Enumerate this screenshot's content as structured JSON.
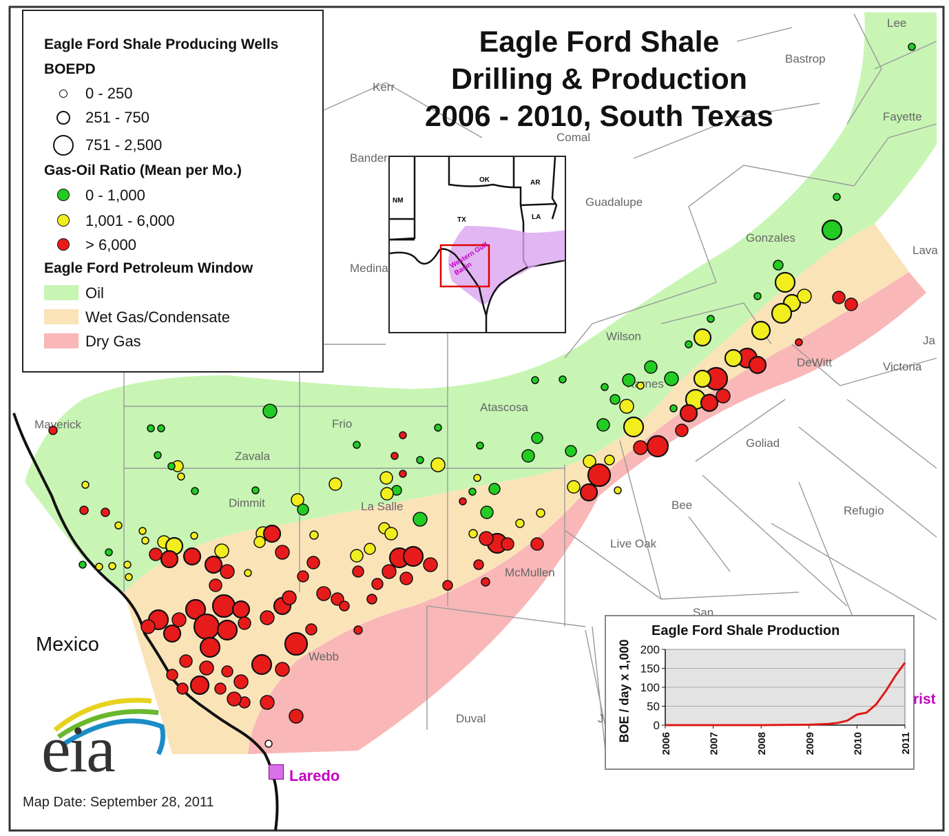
{
  "title": {
    "line1": "Eagle Ford Shale",
    "line2": "Drilling & Production",
    "line3": "2006 - 2010, South Texas"
  },
  "legend": {
    "heading_wells": "Eagle Ford Shale Producing Wells",
    "heading_boepd": "BOEPD",
    "boepd_classes": [
      "0 - 250",
      "251 - 750",
      "751 - 2,500"
    ],
    "heading_gor": "Gas-Oil Ratio (Mean per Mo.)",
    "gor_classes": [
      {
        "label": "0 - 1,000",
        "color": "#22cc22"
      },
      {
        "label": "1,001 - 6,000",
        "color": "#f2ee1e"
      },
      {
        "label": "> 6,000",
        "color": "#e81b1b"
      }
    ],
    "heading_window": "Eagle Ford Petroleum Window",
    "windows": [
      {
        "label": "Oil",
        "color": "#c8f5b4"
      },
      {
        "label": "Wet Gas/Condensate",
        "color": "#fbe3b8"
      },
      {
        "label": "Dry Gas",
        "color": "#f9b7b7"
      }
    ]
  },
  "counties": [
    "Lee",
    "Bastrop",
    "Kerr",
    "Fayette",
    "Comal",
    "Bandera",
    "Guadalupe",
    "Gonzales",
    "Lavaca",
    "Medina",
    "Wilson",
    "Jackson",
    "DeWitt",
    "Victoria",
    "Karnes",
    "Maverick",
    "Frio",
    "Atascosa",
    "Goliad",
    "Zavala",
    "Dimmit",
    "La Salle",
    "Bee",
    "Refugio",
    "Live Oak",
    "McMullen",
    "Webb",
    "San Patricio",
    "Duval",
    "Jim Wells"
  ],
  "county_label_text": {
    "Lee": "Lee",
    "Bastrop": "Bastrop",
    "Kerr": "Kerr",
    "Fayette": "Fayette",
    "Comal": "Comal",
    "Bandera": "Bandera",
    "Guadalupe": "Guadalupe",
    "Gonzales": "Gonzales",
    "Lavaca": "Lava",
    "Medina": "Medina",
    "Wilson": "Wilson",
    "Jackson": "Ja",
    "DeWitt": "DeWitt",
    "Victoria": "Victoria",
    "Karnes": "Karnes",
    "Maverick": "Maverick",
    "Frio": "Frio",
    "Atascosa": "Atascosa",
    "Goliad": "Goliad",
    "Zavala": "Zavala",
    "Dimmit": "Dimmit",
    "La Salle": "La Salle",
    "Bee": "Bee",
    "Refugio": "Refugio",
    "Live Oak": "Live Oak",
    "McMullen": "McMullen",
    "Webb": "Webb",
    "San Patricio": "San",
    "Duval": "Duval",
    "Jim Wells": "J"
  },
  "inset": {
    "states": [
      "NM",
      "OK",
      "AR",
      "TX",
      "LA"
    ],
    "basin_label": "Western Gulf Basin"
  },
  "places": {
    "mexico": "Mexico",
    "laredo": "Laredo",
    "corpus_partial": "rist"
  },
  "logo": {
    "text": "eia"
  },
  "map_date": "Map Date: September 28, 2011",
  "chart_data": {
    "type": "area",
    "title": "Eagle Ford Shale Production",
    "ylabel": "BOE / day x 1,000",
    "xlabel": "",
    "x_ticks": [
      "2006",
      "2007",
      "2008",
      "2009",
      "2010",
      "2011"
    ],
    "y_ticks": [
      "0",
      "50",
      "100",
      "150",
      "200"
    ],
    "ylim": [
      0,
      200
    ],
    "xlim": [
      2006,
      2011
    ],
    "series": [
      {
        "color": "#e01818",
        "x": [
          2006.0,
          2007.0,
          2008.0,
          2009.0,
          2009.4,
          2009.6,
          2009.8,
          2010.0,
          2010.2,
          2010.4,
          2010.6,
          2010.8,
          2011.0
        ],
        "y": [
          0,
          0,
          0,
          1,
          3,
          6,
          12,
          28,
          33,
          55,
          90,
          130,
          165
        ]
      }
    ]
  }
}
